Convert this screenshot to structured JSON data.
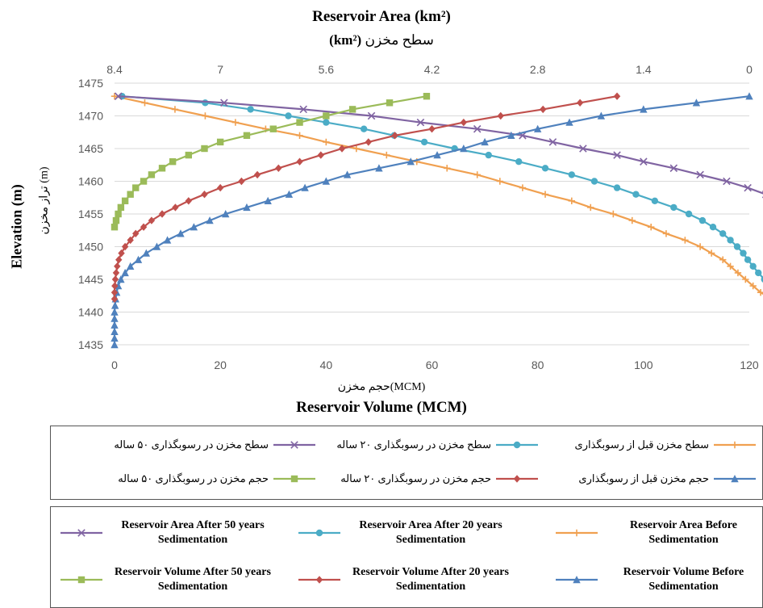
{
  "titles": {
    "top_en": "Reservoir Area (km²)",
    "top_en_unit": "(km²)",
    "top_fa": "سطح مخزن",
    "bottom_fa": "حجم مخزن(MCM)",
    "bottom_en": "Reservoir Volume (MCM)",
    "left_en": "Elevation (m)",
    "left_fa": "تراز مخزن (m)"
  },
  "legend_fa": [
    {
      "series": "area_before",
      "label": "سطح مخزن قبل از رسوبگذاری"
    },
    {
      "series": "area_20",
      "label": "سطح مخزن در رسوبگذاری ۲۰ ساله"
    },
    {
      "series": "area_50",
      "label": "سطح مخزن در رسوبگذاری ۵۰ ساله"
    },
    {
      "series": "vol_before",
      "label": "حجم مخزن قبل از رسوبگذاری"
    },
    {
      "series": "vol_20",
      "label": "حجم مخزن در رسوبگذاری ۲۰ ساله"
    },
    {
      "series": "vol_50",
      "label": "حجم مخزن در رسوبگذاری ۵۰ ساله"
    }
  ],
  "legend_en": [
    {
      "series": "area_50",
      "label": "Reservoir Area After 50 years Sedimentation"
    },
    {
      "series": "area_20",
      "label": "Reservoir Area After 20 years Sedimentation"
    },
    {
      "series": "area_before",
      "label": "Reservoir Area Before Sedimentation"
    },
    {
      "series": "vol_50",
      "label": "Reservoir Volume After 50 years Sedimentation"
    },
    {
      "series": "vol_20",
      "label": "Reservoir Volume After 20 years Sedimentation"
    },
    {
      "series": "vol_before",
      "label": "Reservoir Volume Before Sedimentation"
    }
  ],
  "chart_data": {
    "type": "line",
    "grid": "horizontal",
    "x_bottom": {
      "label": "Reservoir Volume (MCM)",
      "range": [
        0,
        120
      ],
      "ticks": [
        "0",
        "20",
        "40",
        "60",
        "80",
        "100",
        "120"
      ]
    },
    "x_top": {
      "label": "Reservoir Area (km²)",
      "range": [
        8.4,
        0
      ],
      "reversed": true,
      "ticks": [
        "8.4",
        "7",
        "5.6",
        "4.2",
        "2.8",
        "1.4",
        "0"
      ]
    },
    "y": {
      "label": "Elevation (m)",
      "range": [
        1435,
        1475
      ],
      "ticks": [
        "1435",
        "1440",
        "1445",
        "1450",
        "1455",
        "1460",
        "1465",
        "1470",
        "1475"
      ]
    },
    "series": [
      {
        "key": "area_before",
        "axis": "top",
        "color": "#f0a050",
        "marker": "plus",
        "points": [
          [
            8.4,
            1473
          ],
          [
            8.0,
            1472
          ],
          [
            7.6,
            1471
          ],
          [
            7.2,
            1470
          ],
          [
            6.8,
            1469
          ],
          [
            6.4,
            1468
          ],
          [
            5.95,
            1467
          ],
          [
            5.6,
            1466
          ],
          [
            5.2,
            1465
          ],
          [
            4.8,
            1464
          ],
          [
            4.4,
            1463
          ],
          [
            4.0,
            1462
          ],
          [
            3.6,
            1461
          ],
          [
            3.3,
            1460
          ],
          [
            3.0,
            1459
          ],
          [
            2.7,
            1458
          ],
          [
            2.35,
            1457
          ],
          [
            2.1,
            1456
          ],
          [
            1.8,
            1455
          ],
          [
            1.55,
            1454
          ],
          [
            1.3,
            1453
          ],
          [
            1.1,
            1452
          ],
          [
            0.85,
            1451
          ],
          [
            0.65,
            1450
          ],
          [
            0.5,
            1449
          ],
          [
            0.35,
            1448
          ],
          [
            0.25,
            1447
          ],
          [
            0.15,
            1446
          ],
          [
            0.05,
            1445
          ],
          [
            -0.05,
            1444
          ],
          [
            -0.15,
            1443
          ],
          [
            -0.3,
            1442
          ],
          [
            -0.4,
            1441
          ],
          [
            -0.5,
            1440
          ],
          [
            -0.55,
            1439
          ],
          [
            -0.62,
            1438
          ],
          [
            -0.65,
            1437
          ],
          [
            -0.66,
            1436
          ],
          [
            -0.67,
            1435
          ]
        ]
      },
      {
        "key": "area_20",
        "axis": "top",
        "color": "#4bacc6",
        "marker": "circle",
        "points": [
          [
            8.3,
            1473
          ],
          [
            7.2,
            1472
          ],
          [
            6.6,
            1471
          ],
          [
            6.1,
            1470
          ],
          [
            5.6,
            1469
          ],
          [
            5.1,
            1468
          ],
          [
            4.7,
            1467
          ],
          [
            4.3,
            1466
          ],
          [
            3.9,
            1465
          ],
          [
            3.45,
            1464
          ],
          [
            3.05,
            1463
          ],
          [
            2.7,
            1462
          ],
          [
            2.35,
            1461
          ],
          [
            2.05,
            1460
          ],
          [
            1.75,
            1459
          ],
          [
            1.5,
            1458
          ],
          [
            1.25,
            1457
          ],
          [
            1.0,
            1456
          ],
          [
            0.8,
            1455
          ],
          [
            0.62,
            1454
          ],
          [
            0.48,
            1453
          ],
          [
            0.35,
            1452
          ],
          [
            0.25,
            1451
          ],
          [
            0.16,
            1450
          ],
          [
            0.08,
            1449
          ],
          [
            0.02,
            1448
          ],
          [
            -0.05,
            1447
          ],
          [
            -0.12,
            1446
          ],
          [
            -0.2,
            1445
          ],
          [
            -0.28,
            1444
          ],
          [
            -0.35,
            1443
          ],
          [
            -0.42,
            1442
          ]
        ]
      },
      {
        "key": "area_50",
        "axis": "top",
        "color": "#8064a2",
        "marker": "cross",
        "points": [
          [
            8.35,
            1473
          ],
          [
            6.95,
            1472
          ],
          [
            5.9,
            1471
          ],
          [
            5.0,
            1470
          ],
          [
            4.35,
            1469
          ],
          [
            3.6,
            1468
          ],
          [
            3.0,
            1467
          ],
          [
            2.6,
            1466
          ],
          [
            2.2,
            1465
          ],
          [
            1.75,
            1464
          ],
          [
            1.4,
            1463
          ],
          [
            1.0,
            1462
          ],
          [
            0.65,
            1461
          ],
          [
            0.3,
            1460
          ],
          [
            0.02,
            1459
          ],
          [
            -0.22,
            1458
          ],
          [
            -0.45,
            1457
          ],
          [
            -0.65,
            1456
          ],
          [
            -0.9,
            1455
          ],
          [
            -1.15,
            1454
          ],
          [
            -1.35,
            1453
          ]
        ]
      },
      {
        "key": "vol_before",
        "axis": "bottom",
        "color": "#4f81bd",
        "marker": "triangle",
        "points": [
          [
            120,
            1473
          ],
          [
            110,
            1472
          ],
          [
            100,
            1471
          ],
          [
            92,
            1470
          ],
          [
            86,
            1469
          ],
          [
            80,
            1468
          ],
          [
            75,
            1467
          ],
          [
            70,
            1466
          ],
          [
            66,
            1465
          ],
          [
            61,
            1464
          ],
          [
            56,
            1463
          ],
          [
            50,
            1462
          ],
          [
            44,
            1461
          ],
          [
            40,
            1460
          ],
          [
            36,
            1459
          ],
          [
            33,
            1458
          ],
          [
            29,
            1457
          ],
          [
            25,
            1456
          ],
          [
            21,
            1455
          ],
          [
            18,
            1454
          ],
          [
            15,
            1453
          ],
          [
            12.5,
            1452
          ],
          [
            10,
            1451
          ],
          [
            8,
            1450
          ],
          [
            6,
            1449
          ],
          [
            4.5,
            1448
          ],
          [
            3,
            1447
          ],
          [
            2,
            1446
          ],
          [
            1.2,
            1445
          ],
          [
            0.7,
            1444
          ],
          [
            0.4,
            1443
          ],
          [
            0.2,
            1442
          ],
          [
            0.1,
            1441
          ],
          [
            0,
            1440
          ],
          [
            0,
            1439
          ],
          [
            0,
            1438
          ],
          [
            0,
            1437
          ],
          [
            0,
            1436
          ],
          [
            0,
            1435
          ]
        ]
      },
      {
        "key": "vol_20",
        "axis": "bottom",
        "color": "#c0504d",
        "marker": "diamond",
        "points": [
          [
            95,
            1473
          ],
          [
            88,
            1472
          ],
          [
            81,
            1471
          ],
          [
            73,
            1470
          ],
          [
            66,
            1469
          ],
          [
            60,
            1468
          ],
          [
            53,
            1467
          ],
          [
            48,
            1466
          ],
          [
            43,
            1465
          ],
          [
            39,
            1464
          ],
          [
            35,
            1463
          ],
          [
            31,
            1462
          ],
          [
            27,
            1461
          ],
          [
            24,
            1460
          ],
          [
            20,
            1459
          ],
          [
            17,
            1458
          ],
          [
            14,
            1457
          ],
          [
            11.5,
            1456
          ],
          [
            9,
            1455
          ],
          [
            7,
            1454
          ],
          [
            5.5,
            1453
          ],
          [
            4,
            1452
          ],
          [
            3,
            1451
          ],
          [
            2,
            1450
          ],
          [
            1.3,
            1449
          ],
          [
            0.8,
            1448
          ],
          [
            0.5,
            1447
          ],
          [
            0.3,
            1446
          ],
          [
            0.15,
            1445
          ],
          [
            0.05,
            1444
          ],
          [
            0,
            1443
          ],
          [
            0,
            1442
          ]
        ]
      },
      {
        "key": "vol_50",
        "axis": "bottom",
        "color": "#9bbb59",
        "marker": "square",
        "points": [
          [
            59,
            1473
          ],
          [
            52,
            1472
          ],
          [
            45,
            1471
          ],
          [
            40,
            1470
          ],
          [
            35,
            1469
          ],
          [
            30,
            1468
          ],
          [
            25,
            1467
          ],
          [
            20,
            1466
          ],
          [
            17,
            1465
          ],
          [
            14,
            1464
          ],
          [
            11,
            1463
          ],
          [
            9,
            1462
          ],
          [
            7,
            1461
          ],
          [
            5.5,
            1460
          ],
          [
            4,
            1459
          ],
          [
            3,
            1458
          ],
          [
            2,
            1457
          ],
          [
            1.2,
            1456
          ],
          [
            0.7,
            1455
          ],
          [
            0.3,
            1454
          ],
          [
            0,
            1453
          ]
        ]
      }
    ]
  }
}
